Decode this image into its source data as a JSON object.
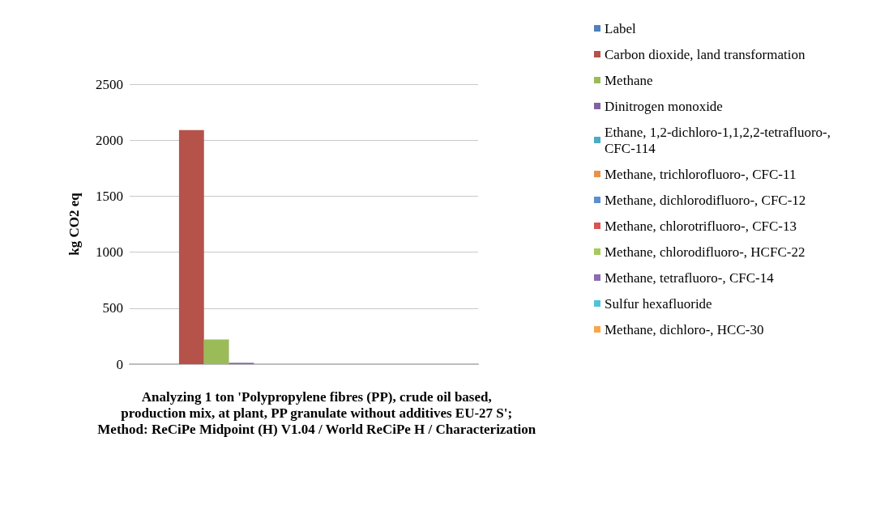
{
  "chart_data": {
    "type": "bar",
    "ylabel": "kg CO2 eq",
    "categories": [
      null
    ],
    "series": [
      {
        "name": "Label",
        "color": "#4f81bd",
        "values": [
          0
        ]
      },
      {
        "name": "Carbon dioxide, land transformation",
        "color": "#b5524a",
        "values": [
          2090
        ]
      },
      {
        "name": "Methane",
        "color": "#9bbb59",
        "values": [
          220
        ]
      },
      {
        "name": "Dinitrogen monoxide",
        "color": "#8064a2",
        "values": [
          12
        ]
      },
      {
        "name": "Ethane, 1,2-dichloro-1,1,2,2-tetrafluoro-, CFC-114",
        "color": "#4bacc6",
        "values": [
          0
        ]
      },
      {
        "name": "Methane, trichlorofluoro-, CFC-11",
        "color": "#e8924a",
        "values": [
          0
        ]
      },
      {
        "name": "Methane, dichlorodifluoro-, CFC-12",
        "color": "#5b8fd0",
        "values": [
          0
        ]
      },
      {
        "name": "Methane, chlorotrifluoro-, CFC-13",
        "color": "#d9534f",
        "values": [
          0
        ]
      },
      {
        "name": "Methane, chlorodifluoro-, HCFC-22",
        "color": "#a6c95a",
        "values": [
          0
        ]
      },
      {
        "name": "Methane, tetrafluoro-, CFC-14",
        "color": "#8c6bb1",
        "values": [
          0
        ]
      },
      {
        "name": "Sulfur hexafluoride",
        "color": "#4fc3d9",
        "values": [
          0
        ]
      },
      {
        "name": "Methane, dichloro-, HCC-30",
        "color": "#f9a54a",
        "values": [
          0
        ]
      }
    ],
    "ylim": [
      0,
      2500
    ],
    "yticks": [
      0,
      500,
      1000,
      1500,
      2000,
      2500
    ],
    "grid": "y",
    "legend": "right",
    "annotations": [
      "Analyzing 1 ton 'Polypropylene fibres (PP), crude oil based,\nproduction mix, at plant, PP granulate without additives EU-27 S';\nMethod: ReCiPe Midpoint (H) V1.04 / World ReCiPe H / Characterization"
    ]
  }
}
